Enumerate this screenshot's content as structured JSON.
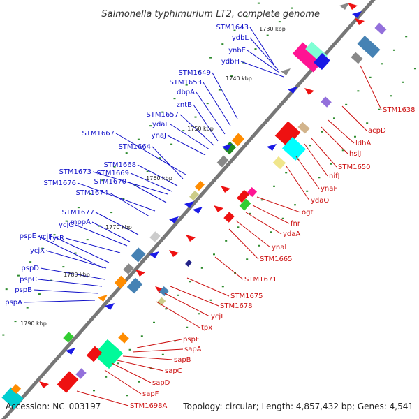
{
  "title": "Salmonella typhimurium LT2, complete genome",
  "footer": {
    "accession": "Accession: NC_003197",
    "info": "Topology: circular; Length: 4,857,432 bp; Genes: 4,541"
  },
  "kbp_marks": [
    "1730 kbp",
    "1740 kbp",
    "1750 kbp",
    "1760 kbp",
    "1770 kbp",
    "1780 kbp",
    "1790 kbp"
  ],
  "left_genes": [
    "STM1643",
    "ydbL",
    "ynbE",
    "ydbH",
    "STM1649",
    "STM1653",
    "dbpA",
    "zntB",
    "STM1657",
    "ydaL",
    "ynaJ",
    "STM1667",
    "STM1664",
    "STM1668",
    "STM1673",
    "STM1669",
    "STM1676",
    "STM1670",
    "STM1674",
    "STM1677",
    "mppA",
    "ycjG",
    "tyrR",
    "pspE",
    "ycjF",
    "ycjX",
    "pspD",
    "pspC",
    "pspB",
    "pspA"
  ],
  "right_genes": [
    "STM1638",
    "acpD",
    "ldhA",
    "hslJ",
    "STM1650",
    "nifJ",
    "ynaF",
    "ydaO",
    "ogt",
    "fnr",
    "ydaA",
    "ynaI",
    "STM1665",
    "STM1671",
    "STM1675",
    "STM1678",
    "ycjI",
    "tpx",
    "pspF",
    "sapA",
    "sapB",
    "sapC",
    "sapD",
    "sapF",
    "STM1698A"
  ],
  "colors": {
    "left_label": "#1010c8",
    "right_label": "#cc1010",
    "backbone": "#777777",
    "forward_arrow": "#1a1ae6",
    "reverse_arrow": "#ee1111",
    "dots": "#2e8b2e"
  }
}
